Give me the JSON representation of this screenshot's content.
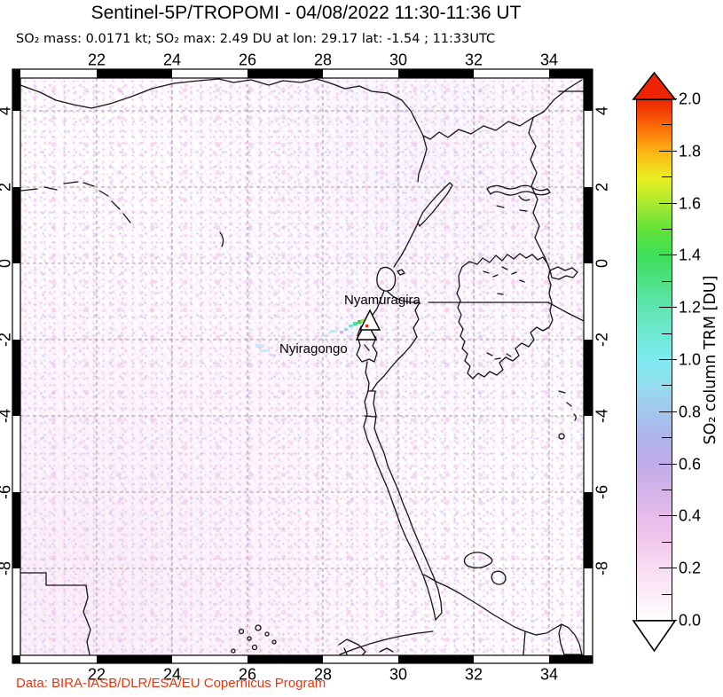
{
  "header": {
    "title": "Sentinel-5P/TROPOMI - 04/08/2022 11:30-11:36 UT",
    "subtitle": "SO₂ mass: 0.0171 kt; SO₂ max: 2.49 DU at lon: 29.17 lat: -1.54 ; 11:33UTC"
  },
  "stats": {
    "so2_mass_kt": "0.0171",
    "so2_max_du": "2.49",
    "max_lon": "29.17",
    "max_lat": "-1.54",
    "max_time": "11:33UTC"
  },
  "map": {
    "lon_tick_labels": [
      "22",
      "24",
      "26",
      "28",
      "30",
      "32",
      "34"
    ],
    "lon_tick_values": [
      22,
      24,
      26,
      28,
      30,
      32,
      34
    ],
    "lat_tick_labels": [
      "4",
      "2",
      "0",
      "-2",
      "-4",
      "-6",
      "-8"
    ],
    "lat_tick_values": [
      4,
      2,
      0,
      -2,
      -4,
      -6,
      -8
    ],
    "volcanoes": [
      {
        "name": "Nyamuragira"
      },
      {
        "name": "Nyiragongo"
      }
    ]
  },
  "colorbar": {
    "label": "SO₂ column TRM [DU]",
    "tick_labels": [
      "0.0",
      "0.2",
      "0.4",
      "0.6",
      "0.8",
      "1.0",
      "1.2",
      "1.4",
      "1.6",
      "1.8",
      "2.0"
    ],
    "tick_values": [
      0.0,
      0.2,
      0.4,
      0.6,
      0.8,
      1.0,
      1.2,
      1.4,
      1.6,
      1.8,
      2.0
    ],
    "range": [
      0.0,
      2.0
    ],
    "over_arrow_color": "#ee2400",
    "under_arrow_color": "#ffffff",
    "gradient_stops": [
      {
        "v": 0.0,
        "c": "#ffffff"
      },
      {
        "v": 0.1,
        "c": "#fcecf7"
      },
      {
        "v": 0.2,
        "c": "#f8dcf2"
      },
      {
        "v": 0.3,
        "c": "#f1c9ec"
      },
      {
        "v": 0.4,
        "c": "#e5bcea"
      },
      {
        "v": 0.5,
        "c": "#d3b3e9"
      },
      {
        "v": 0.6,
        "c": "#c0abe9"
      },
      {
        "v": 0.7,
        "c": "#aeb3ea"
      },
      {
        "v": 0.8,
        "c": "#a3c6ec"
      },
      {
        "v": 0.9,
        "c": "#95dcee"
      },
      {
        "v": 1.0,
        "c": "#7eebf0"
      },
      {
        "v": 1.1,
        "c": "#6fe9d4"
      },
      {
        "v": 1.2,
        "c": "#60e5b1"
      },
      {
        "v": 1.3,
        "c": "#4ee286"
      },
      {
        "v": 1.4,
        "c": "#3ede58"
      },
      {
        "v": 1.5,
        "c": "#5fe13a"
      },
      {
        "v": 1.6,
        "c": "#a8e930"
      },
      {
        "v": 1.7,
        "c": "#e9f022"
      },
      {
        "v": 1.8,
        "c": "#fdb514"
      },
      {
        "v": 1.9,
        "c": "#fa6a07"
      },
      {
        "v": 2.0,
        "c": "#ee2400"
      }
    ]
  },
  "credit": {
    "text": "Data: BIRA-IASB/DLR/ESA/EU Copernicus Program",
    "color": "#e8350e"
  }
}
